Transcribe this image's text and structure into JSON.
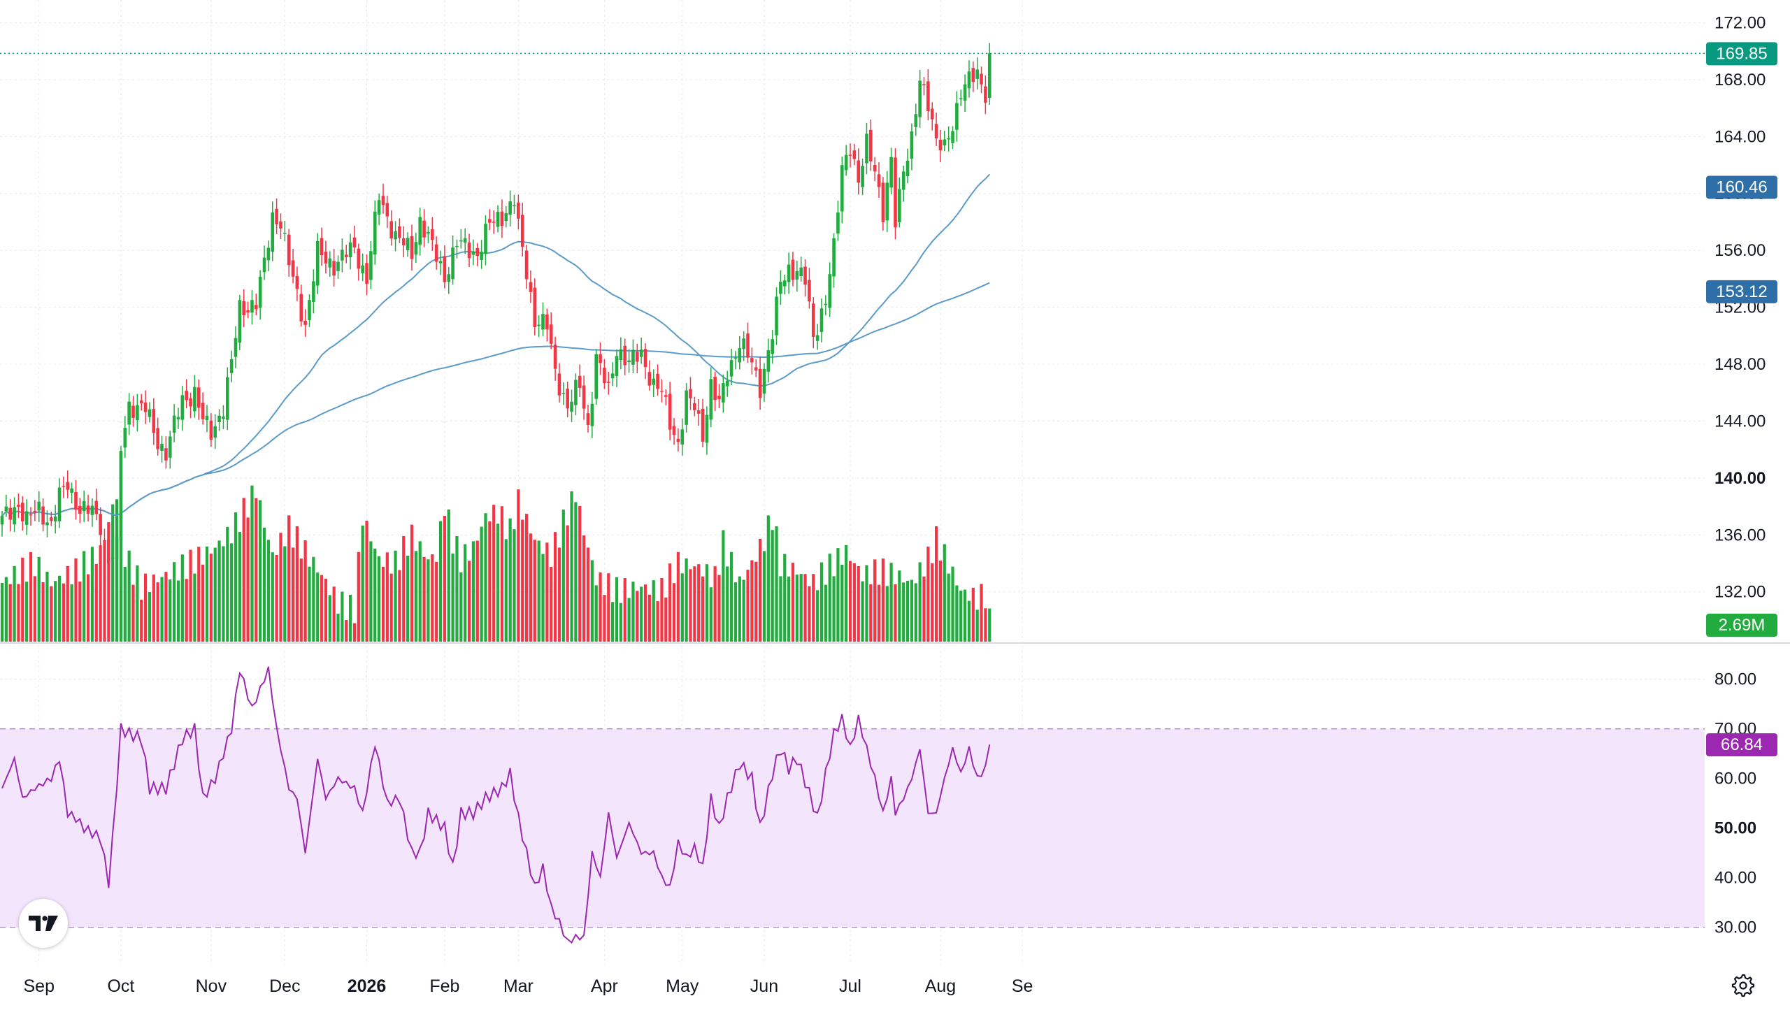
{
  "chart_data": {
    "type": "candlestick",
    "title": "",
    "price_axis": {
      "ylim": [
        128.4,
        173.6
      ],
      "ticks": [
        "172.00",
        "168.00",
        "164.00",
        "160.00",
        "156.00",
        "152.00",
        "148.00",
        "144.00",
        "140.00",
        "136.00",
        "132.00"
      ],
      "bold_tick": "140.00",
      "grid": true
    },
    "rsi_axis": {
      "ylim": [
        22.5,
        87
      ],
      "ticks": [
        "80.00",
        "70.00",
        "60.00",
        "50.00",
        "40.00",
        "30.00"
      ],
      "bold_tick": "50.00",
      "band": [
        30,
        70
      ]
    },
    "x_axis": {
      "labels": [
        {
          "text": "Sep",
          "idx": 9,
          "bold": false
        },
        {
          "text": "Oct",
          "idx": 29,
          "bold": false
        },
        {
          "text": "Nov",
          "idx": 51,
          "bold": false
        },
        {
          "text": "Dec",
          "idx": 69,
          "bold": false
        },
        {
          "text": "2026",
          "idx": 89,
          "bold": true
        },
        {
          "text": "Feb",
          "idx": 108,
          "bold": false
        },
        {
          "text": "Mar",
          "idx": 126,
          "bold": false
        },
        {
          "text": "Apr",
          "idx": 147,
          "bold": false
        },
        {
          "text": "May",
          "idx": 166,
          "bold": false
        },
        {
          "text": "Jun",
          "idx": 186,
          "bold": false
        },
        {
          "text": "Jul",
          "idx": 207,
          "bold": false
        },
        {
          "text": "Aug",
          "idx": 229,
          "bold": false
        },
        {
          "text": "Se",
          "idx": 249,
          "bold": false
        }
      ]
    },
    "price_tags": [
      {
        "label": "169.85",
        "value": 169.85,
        "color": "#089981"
      },
      {
        "label": "160.46",
        "value": 160.46,
        "color": "#2f6fa8"
      },
      {
        "label": "153.12",
        "value": 153.12,
        "color": "#2f6fa8"
      }
    ],
    "volume_tag": {
      "label": "2.69M",
      "color": "#22ab3f"
    },
    "rsi_tag": {
      "label": "66.84",
      "value": 66.84,
      "color": "#9c27b0"
    },
    "colors": {
      "up": "#22ab3f",
      "down": "#f23645",
      "ma": "#5b9bc8",
      "rsi": "#9c27b0",
      "rsi_band": "#f3e5fc",
      "last_price_line": "#089981"
    },
    "ohlc_anchors": [
      [
        0,
        137.0
      ],
      [
        4,
        138.2
      ],
      [
        6,
        137.0
      ],
      [
        9,
        137.8
      ],
      [
        12,
        136.8
      ],
      [
        14,
        138.6
      ],
      [
        16,
        139.6
      ],
      [
        19,
        137.8
      ],
      [
        22,
        137.6
      ],
      [
        24,
        136.8
      ],
      [
        26,
        134.2
      ],
      [
        28,
        135.0
      ],
      [
        29,
        142.0
      ],
      [
        31,
        145.2
      ],
      [
        35,
        144.8
      ],
      [
        38,
        142.6
      ],
      [
        40,
        141.8
      ],
      [
        44,
        145.5
      ],
      [
        47,
        146.0
      ],
      [
        49,
        144.0
      ],
      [
        51,
        143.2
      ],
      [
        54,
        145.0
      ],
      [
        56,
        148.0
      ],
      [
        58,
        152.0
      ],
      [
        62,
        152.2
      ],
      [
        64,
        155.0
      ],
      [
        66,
        158.5
      ],
      [
        68,
        158.0
      ],
      [
        70,
        155.0
      ],
      [
        74,
        150.8
      ],
      [
        77,
        155.8
      ],
      [
        81,
        155.0
      ],
      [
        86,
        156.2
      ],
      [
        89,
        154.0
      ],
      [
        92,
        159.8
      ],
      [
        96,
        157.0
      ],
      [
        100,
        155.8
      ],
      [
        102,
        158.2
      ],
      [
        106,
        155.5
      ],
      [
        108,
        154.2
      ],
      [
        111,
        156.5
      ],
      [
        116,
        155.8
      ],
      [
        119,
        157.8
      ],
      [
        122,
        158.5
      ],
      [
        125,
        159.5
      ],
      [
        126,
        157.5
      ],
      [
        128,
        154.5
      ],
      [
        130,
        151.2
      ],
      [
        133,
        150.6
      ],
      [
        135,
        147.5
      ],
      [
        138,
        145.0
      ],
      [
        141,
        146.5
      ],
      [
        143,
        143.6
      ],
      [
        145,
        148.5
      ],
      [
        148,
        146.0
      ],
      [
        150,
        149.2
      ],
      [
        153,
        148.0
      ],
      [
        156,
        148.8
      ],
      [
        159,
        146.5
      ],
      [
        161,
        146.0
      ],
      [
        163,
        144.0
      ],
      [
        165,
        142.5
      ],
      [
        167,
        145.5
      ],
      [
        169,
        145.0
      ],
      [
        171,
        143.2
      ],
      [
        173,
        146.5
      ],
      [
        175,
        145.0
      ],
      [
        177,
        147.5
      ],
      [
        180,
        149.5
      ],
      [
        183,
        148.0
      ],
      [
        185,
        146.5
      ],
      [
        188,
        150.0
      ],
      [
        190,
        153.8
      ],
      [
        192,
        154.8
      ],
      [
        194,
        154.5
      ],
      [
        196,
        153.8
      ],
      [
        198,
        150.0
      ],
      [
        201,
        152.5
      ],
      [
        203,
        156.0
      ],
      [
        205,
        162.0
      ],
      [
        207,
        163.5
      ],
      [
        209,
        160.5
      ],
      [
        211,
        163.5
      ],
      [
        213,
        162.0
      ],
      [
        215,
        158.5
      ],
      [
        217,
        162.0
      ],
      [
        218,
        158.0
      ],
      [
        220,
        162.0
      ],
      [
        222,
        163.8
      ],
      [
        224,
        167.6
      ],
      [
        226,
        166.5
      ],
      [
        228,
        164.0
      ],
      [
        230,
        163.0
      ],
      [
        232,
        164.5
      ],
      [
        234,
        167.5
      ],
      [
        236,
        168.2
      ],
      [
        238,
        168.0
      ],
      [
        240,
        167.0
      ],
      [
        241,
        169.85
      ]
    ],
    "volume_anchors": [
      [
        0,
        1.5
      ],
      [
        3,
        1.7
      ],
      [
        8,
        2.0
      ],
      [
        12,
        1.5
      ],
      [
        18,
        1.8
      ],
      [
        24,
        2.3
      ],
      [
        28,
        3.8
      ],
      [
        30,
        2.2
      ],
      [
        34,
        1.4
      ],
      [
        40,
        1.7
      ],
      [
        46,
        2.0
      ],
      [
        52,
        2.4
      ],
      [
        56,
        2.8
      ],
      [
        60,
        3.5
      ],
      [
        62,
        3.9
      ],
      [
        64,
        3.0
      ],
      [
        66,
        2.2
      ],
      [
        70,
        2.9
      ],
      [
        74,
        2.3
      ],
      [
        78,
        1.7
      ],
      [
        82,
        1.0
      ],
      [
        86,
        0.8
      ],
      [
        88,
        3.2
      ],
      [
        92,
        2.1
      ],
      [
        96,
        2.0
      ],
      [
        100,
        2.7
      ],
      [
        104,
        2.1
      ],
      [
        106,
        2.2
      ],
      [
        108,
        3.5
      ],
      [
        110,
        2.6
      ],
      [
        112,
        2.1
      ],
      [
        115,
        2.4
      ],
      [
        118,
        3.2
      ],
      [
        121,
        3.3
      ],
      [
        124,
        2.8
      ],
      [
        126,
        3.6
      ],
      [
        130,
        2.6
      ],
      [
        134,
        2.2
      ],
      [
        138,
        3.3
      ],
      [
        140,
        3.8
      ],
      [
        142,
        2.8
      ],
      [
        145,
        1.6
      ],
      [
        150,
        1.3
      ],
      [
        156,
        1.4
      ],
      [
        161,
        1.3
      ],
      [
        165,
        2.0
      ],
      [
        170,
        1.9
      ],
      [
        174,
        1.6
      ],
      [
        176,
        2.5
      ],
      [
        180,
        1.5
      ],
      [
        183,
        2.0
      ],
      [
        186,
        2.6
      ],
      [
        188,
        3.2
      ],
      [
        190,
        2.0
      ],
      [
        194,
        1.8
      ],
      [
        198,
        1.5
      ],
      [
        202,
        1.9
      ],
      [
        206,
        2.3
      ],
      [
        210,
        1.7
      ],
      [
        214,
        1.8
      ],
      [
        218,
        1.7
      ],
      [
        222,
        1.5
      ],
      [
        226,
        2.1
      ],
      [
        228,
        2.6
      ],
      [
        230,
        2.2
      ],
      [
        234,
        1.3
      ],
      [
        238,
        1.1
      ],
      [
        240,
        1.2
      ],
      [
        241,
        0.5
      ]
    ],
    "rsi_anchors": [
      [
        0,
        58
      ],
      [
        3,
        64
      ],
      [
        5,
        56
      ],
      [
        8,
        58
      ],
      [
        12,
        60
      ],
      [
        14,
        64
      ],
      [
        16,
        53
      ],
      [
        18,
        52
      ],
      [
        20,
        50
      ],
      [
        24,
        48
      ],
      [
        26,
        39
      ],
      [
        27,
        48
      ],
      [
        29,
        70
      ],
      [
        31,
        69
      ],
      [
        34,
        68
      ],
      [
        36,
        58
      ],
      [
        40,
        58
      ],
      [
        44,
        68
      ],
      [
        47,
        70
      ],
      [
        49,
        56
      ],
      [
        52,
        60
      ],
      [
        56,
        70
      ],
      [
        58,
        82
      ],
      [
        61,
        74
      ],
      [
        63,
        78
      ],
      [
        65,
        82
      ],
      [
        67,
        70
      ],
      [
        70,
        58
      ],
      [
        72,
        56
      ],
      [
        74,
        45
      ],
      [
        77,
        64
      ],
      [
        79,
        56
      ],
      [
        82,
        60
      ],
      [
        86,
        58
      ],
      [
        88,
        53
      ],
      [
        91,
        67
      ],
      [
        94,
        55
      ],
      [
        97,
        56
      ],
      [
        100,
        45
      ],
      [
        102,
        45
      ],
      [
        104,
        53
      ],
      [
        108,
        50
      ],
      [
        110,
        42
      ],
      [
        112,
        53
      ],
      [
        115,
        53
      ],
      [
        118,
        56
      ],
      [
        122,
        58
      ],
      [
        124,
        61
      ],
      [
        126,
        52
      ],
      [
        128,
        45
      ],
      [
        130,
        38
      ],
      [
        132,
        42
      ],
      [
        134,
        34
      ],
      [
        136,
        31
      ],
      [
        138,
        27
      ],
      [
        140,
        28
      ],
      [
        142,
        28
      ],
      [
        144,
        45
      ],
      [
        146,
        40
      ],
      [
        148,
        53
      ],
      [
        150,
        44
      ],
      [
        153,
        51
      ],
      [
        156,
        45
      ],
      [
        159,
        45
      ],
      [
        161,
        40
      ],
      [
        163,
        38
      ],
      [
        165,
        47
      ],
      [
        167,
        44
      ],
      [
        169,
        46
      ],
      [
        171,
        42
      ],
      [
        173,
        56
      ],
      [
        175,
        50
      ],
      [
        177,
        56
      ],
      [
        180,
        63
      ],
      [
        183,
        60
      ],
      [
        185,
        50
      ],
      [
        188,
        61
      ],
      [
        190,
        66
      ],
      [
        192,
        62
      ],
      [
        194,
        64
      ],
      [
        197,
        57
      ],
      [
        199,
        52
      ],
      [
        201,
        61
      ],
      [
        203,
        69
      ],
      [
        205,
        72
      ],
      [
        207,
        66
      ],
      [
        209,
        72
      ],
      [
        211,
        66
      ],
      [
        213,
        60
      ],
      [
        215,
        53
      ],
      [
        217,
        60
      ],
      [
        218,
        53
      ],
      [
        220,
        56
      ],
      [
        222,
        60
      ],
      [
        224,
        66
      ],
      [
        226,
        53
      ],
      [
        228,
        53
      ],
      [
        230,
        60
      ],
      [
        232,
        66
      ],
      [
        234,
        61
      ],
      [
        236,
        66
      ],
      [
        238,
        60
      ],
      [
        240,
        62
      ],
      [
        241,
        66.84
      ]
    ]
  }
}
